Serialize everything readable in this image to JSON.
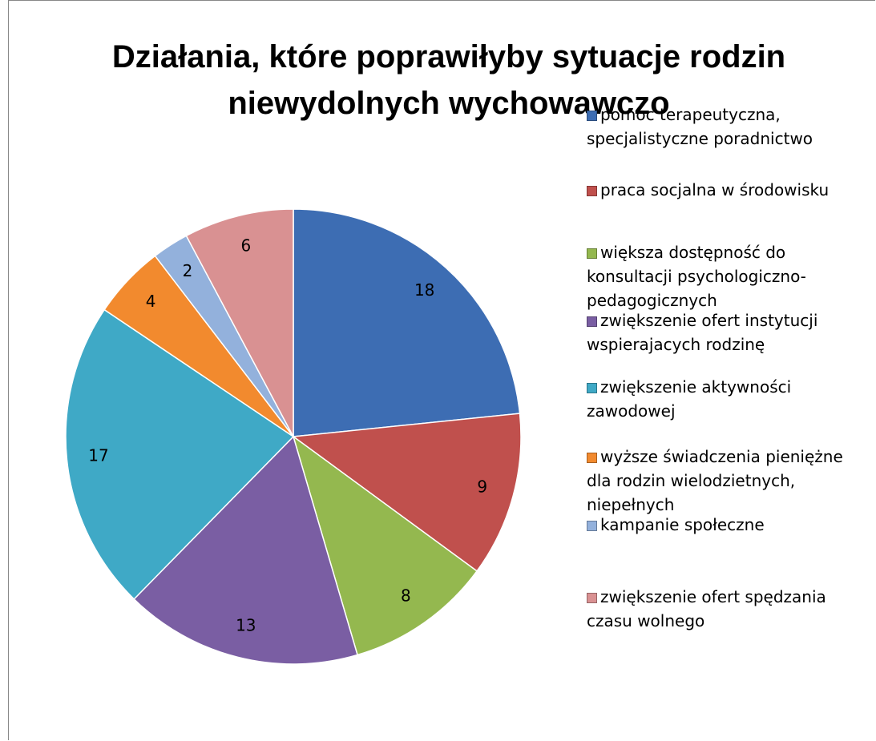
{
  "chart_data": {
    "type": "pie",
    "title": "Działania, które poprawiłyby sytuacje rodzin niewydolnych wychowawczo",
    "categories": [
      "pomoc terapeutyczna, specjalistyczne poradnictwo",
      "praca socjalna w środowisku",
      "większa dostępność do konsultacji psychologiczno-pedagogicznych",
      "zwiększenie ofert instytucji wspierajacych rodzinę",
      "zwiększenie aktywności zawodowej",
      "wyższe świadczenia pieniężne dla rodzin wielodzietnych, niepełnych",
      "kampanie społeczne",
      "zwiększenie ofert spędzania czasu wolnego"
    ],
    "values": [
      18,
      9,
      8,
      13,
      17,
      4,
      2,
      6
    ],
    "colors": [
      "#3d6db3",
      "#c0504d",
      "#94b84f",
      "#7a5ea3",
      "#3fa9c6",
      "#f28a2e",
      "#93b1dc",
      "#d99192"
    ],
    "legend": "right"
  }
}
